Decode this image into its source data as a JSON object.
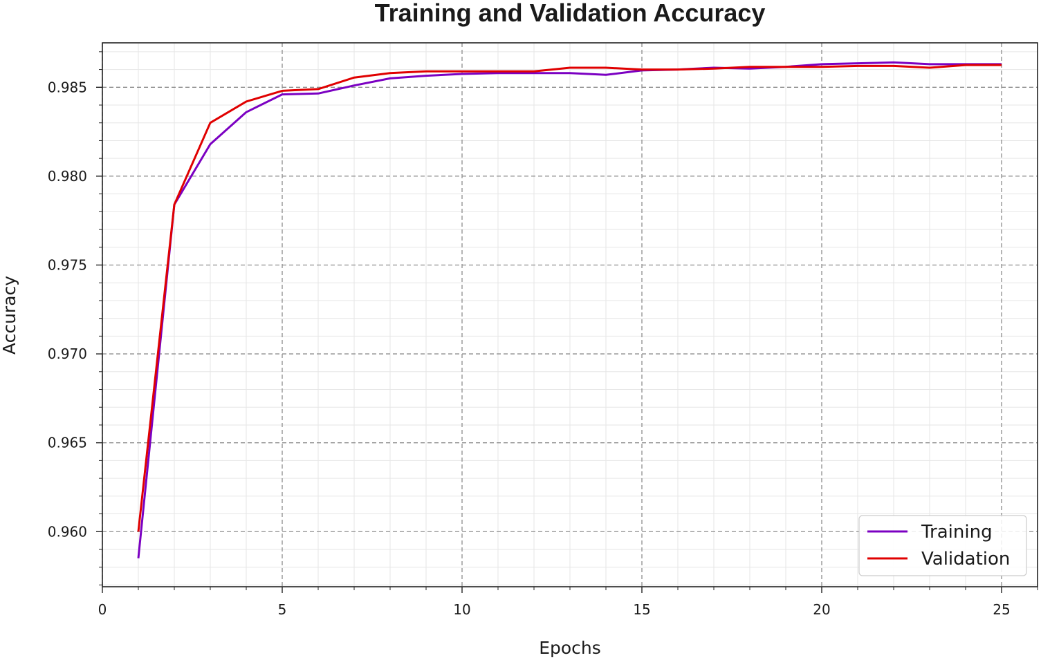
{
  "chart_data": {
    "type": "line",
    "title": "Training and Validation Accuracy",
    "xlabel": "Epochs",
    "ylabel": "Accuracy",
    "xlim": [
      0,
      26.0
    ],
    "ylim": [
      0.9569,
      0.9875
    ],
    "xticks": [
      0,
      5,
      10,
      15,
      20,
      25
    ],
    "xtick_labels": [
      "0",
      "5",
      "10",
      "15",
      "20",
      "25"
    ],
    "yticks": [
      0.96,
      0.965,
      0.97,
      0.975,
      0.98,
      0.985
    ],
    "ytick_labels": [
      "0.960",
      "0.965",
      "0.970",
      "0.975",
      "0.980",
      "0.985"
    ],
    "grid": true,
    "legend_position": "bottom-right",
    "x": [
      1,
      2,
      3,
      4,
      5,
      6,
      7,
      8,
      9,
      10,
      11,
      12,
      13,
      14,
      15,
      16,
      17,
      18,
      19,
      20,
      21,
      22,
      23,
      24,
      25
    ],
    "series": [
      {
        "name": "Training",
        "color": "#7b00c2",
        "values": [
          0.9585,
          0.9784,
          0.9818,
          0.9836,
          0.9846,
          0.98465,
          0.9851,
          0.9855,
          0.98565,
          0.98575,
          0.9858,
          0.9858,
          0.9858,
          0.9857,
          0.98595,
          0.986,
          0.9861,
          0.98605,
          0.98615,
          0.9863,
          0.98635,
          0.9864,
          0.9863,
          0.9863,
          0.9863
        ]
      },
      {
        "name": "Validation",
        "color": "#e00000",
        "values": [
          0.96,
          0.9784,
          0.983,
          0.9842,
          0.9848,
          0.9849,
          0.98555,
          0.9858,
          0.9859,
          0.9859,
          0.9859,
          0.9859,
          0.9861,
          0.9861,
          0.986,
          0.986,
          0.98605,
          0.98615,
          0.98615,
          0.98615,
          0.9862,
          0.9862,
          0.9861,
          0.98625,
          0.98625
        ]
      }
    ]
  }
}
